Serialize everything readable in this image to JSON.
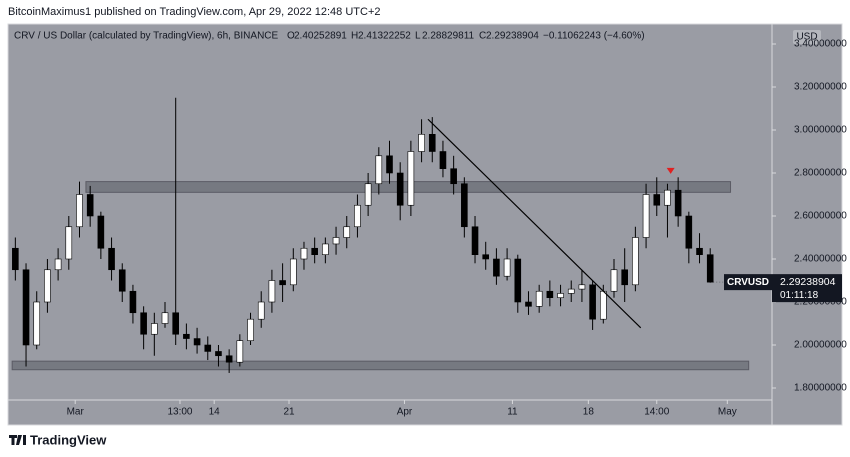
{
  "header": {
    "publisher": "BitcoinMaximus1 published on TradingView.com, Apr 29, 2022 12:48 UTC+2",
    "footer": "TradingView"
  },
  "chart_data": {
    "type": "candlestick",
    "title": "CRV / US Dollar (calculated by TradingView), 6h, BINANCE",
    "legend_ohlc": [
      {
        "label": "O",
        "value": 2.40252891
      },
      {
        "label": "H",
        "value": 2.41322252
      },
      {
        "label": "L",
        "value": 2.28829811
      },
      {
        "label": "C",
        "value": 2.29238904
      }
    ],
    "change": "−0.11062243 (−4.60%)",
    "currency": "USD",
    "symbol": "CRVUSD",
    "last_price": "2.29238904",
    "countdown": "01:11:18",
    "up_color": "#ffffff",
    "down_color": "#000000",
    "background": "#9a9ca4",
    "open": [
      2.45,
      2.35,
      2.0,
      2.2,
      2.35,
      2.4,
      2.55,
      2.7,
      2.6,
      2.45,
      2.35,
      2.25,
      2.15,
      2.05,
      2.1,
      2.15,
      2.05,
      2.03,
      2.0,
      1.97,
      1.95,
      1.92,
      2.02,
      2.12,
      2.2,
      2.3,
      2.28,
      2.4,
      2.45,
      2.42,
      2.47,
      2.5,
      2.55,
      2.65,
      2.75,
      2.88,
      2.8,
      2.65,
      2.9,
      2.98,
      2.9,
      2.82,
      2.75,
      2.55,
      2.42,
      2.4,
      2.32,
      2.4,
      2.2,
      2.18,
      2.25,
      2.22,
      2.24,
      2.26,
      2.28,
      2.12,
      2.25,
      2.35,
      2.28,
      2.5,
      2.7,
      2.65,
      2.72,
      2.6,
      2.45,
      2.42
    ],
    "high": [
      2.5,
      2.38,
      2.25,
      2.4,
      2.45,
      2.6,
      2.76,
      2.74,
      2.62,
      2.5,
      2.38,
      2.28,
      2.18,
      2.15,
      2.2,
      3.15,
      2.1,
      2.08,
      2.04,
      2.0,
      1.98,
      2.05,
      2.15,
      2.25,
      2.35,
      2.38,
      2.45,
      2.48,
      2.5,
      2.5,
      2.55,
      2.6,
      2.7,
      2.8,
      2.92,
      2.95,
      2.85,
      2.95,
      3.05,
      3.06,
      2.95,
      2.88,
      2.78,
      2.6,
      2.48,
      2.45,
      2.45,
      2.42,
      2.25,
      2.28,
      2.3,
      2.28,
      2.3,
      2.35,
      2.3,
      2.28,
      2.4,
      2.45,
      2.55,
      2.75,
      2.78,
      2.75,
      2.78,
      2.62,
      2.52,
      2.45
    ],
    "low": [
      2.3,
      1.9,
      1.98,
      2.15,
      2.3,
      2.35,
      2.5,
      2.55,
      2.4,
      2.3,
      2.2,
      2.1,
      1.98,
      1.95,
      2.08,
      2.0,
      1.98,
      1.96,
      1.93,
      1.9,
      1.87,
      1.9,
      2.0,
      2.08,
      2.15,
      2.2,
      2.25,
      2.35,
      2.38,
      2.38,
      2.42,
      2.45,
      2.5,
      2.6,
      2.7,
      2.75,
      2.58,
      2.6,
      2.85,
      2.85,
      2.78,
      2.7,
      2.5,
      2.38,
      2.35,
      2.28,
      2.3,
      2.15,
      2.14,
      2.15,
      2.18,
      2.18,
      2.2,
      2.2,
      2.07,
      2.1,
      2.22,
      2.2,
      2.25,
      2.45,
      2.6,
      2.5,
      2.55,
      2.38,
      2.38,
      2.29
    ],
    "close": [
      2.35,
      2.0,
      2.2,
      2.35,
      2.4,
      2.55,
      2.7,
      2.6,
      2.45,
      2.35,
      2.25,
      2.15,
      2.05,
      2.1,
      2.15,
      2.05,
      2.03,
      2.0,
      1.97,
      1.95,
      1.92,
      2.02,
      2.12,
      2.2,
      2.3,
      2.28,
      2.4,
      2.45,
      2.42,
      2.47,
      2.5,
      2.55,
      2.65,
      2.75,
      2.88,
      2.8,
      2.65,
      2.9,
      2.98,
      2.9,
      2.82,
      2.75,
      2.55,
      2.42,
      2.4,
      2.32,
      2.4,
      2.2,
      2.18,
      2.25,
      2.22,
      2.24,
      2.26,
      2.28,
      2.12,
      2.25,
      2.35,
      2.28,
      2.5,
      2.7,
      2.65,
      2.72,
      2.6,
      2.45,
      2.42,
      2.29238904
    ],
    "zones": [
      {
        "start": 6.6,
        "end": 66.9,
        "low": 2.71,
        "high": 2.76
      },
      {
        "start": -0.3,
        "end": 68.6,
        "low": 1.885,
        "high": 1.925
      }
    ],
    "trendline": {
      "x": [
        38.6,
        58.5
      ],
      "values": [
        3.05,
        2.08
      ]
    },
    "marker": {
      "x": 61.3,
      "value": 2.81,
      "color": "#e02020"
    },
    "xlim": [
      -0.5,
      70.78
    ],
    "ylim": [
      1.7535,
      3.4837
    ],
    "xticks": [
      {
        "value": 5.6,
        "label": "Mar"
      },
      {
        "value": 15.4,
        "label": "13:00"
      },
      {
        "value": 18.6,
        "label": "14"
      },
      {
        "value": 25.6,
        "label": "21"
      },
      {
        "value": 36.4,
        "label": "Apr"
      },
      {
        "value": 46.5,
        "label": "11"
      },
      {
        "value": 53.6,
        "label": "18"
      },
      {
        "value": 60.0,
        "label": "14:00"
      },
      {
        "value": 66.6,
        "label": "May"
      }
    ],
    "yticks": [
      {
        "value": 1.8,
        "label": "1.80000000"
      },
      {
        "value": 2.0,
        "label": "2.00000000"
      },
      {
        "value": 2.2,
        "label": "2.20000000"
      },
      {
        "value": 2.4,
        "label": "2.40000000"
      },
      {
        "value": 2.6,
        "label": "2.60000000"
      },
      {
        "value": 2.8,
        "label": "2.80000000"
      },
      {
        "value": 3.0,
        "label": "3.00000000"
      },
      {
        "value": 3.2,
        "label": "3.20000000"
      },
      {
        "value": 3.4,
        "label": "3.40000000"
      }
    ]
  }
}
